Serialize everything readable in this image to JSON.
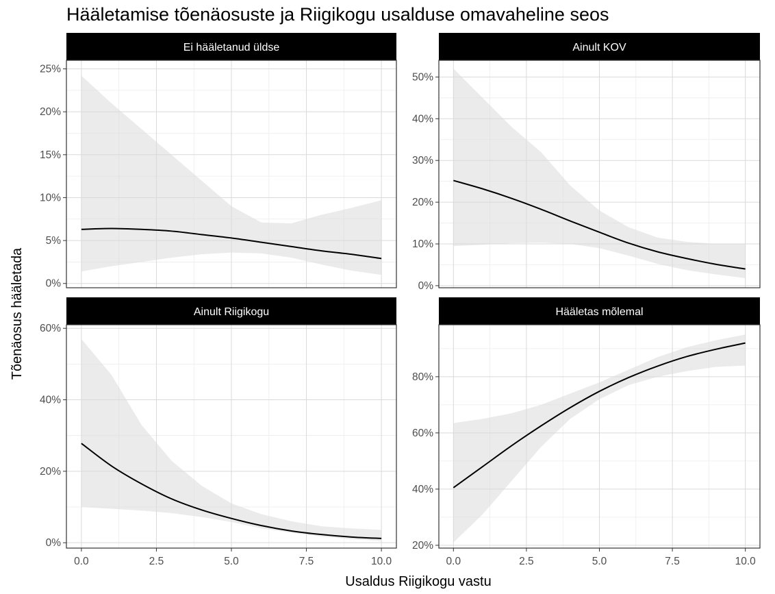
{
  "chart_data": {
    "type": "line",
    "title": "Hääletamise tõenäosuste ja Riigikogu usalduse omavaheline seos",
    "xlabel": "Usaldus Riigikogu vastu",
    "ylabel": "Tõenäosus hääletada",
    "xlim": [
      -0.5,
      10.5
    ],
    "x_ticks": [
      0,
      2.5,
      5,
      7.5,
      10
    ],
    "x_tick_labels": [
      "0.0",
      "2.5",
      "5.0",
      "7.5",
      "10.0"
    ],
    "panels": [
      {
        "strip": "Ei hääletanud üldse",
        "ylim": [
          -0.005,
          0.26
        ],
        "y_ticks": [
          0,
          0.05,
          0.1,
          0.15,
          0.2,
          0.25
        ],
        "y_tick_labels": [
          "0%",
          "5%",
          "10%",
          "15%",
          "20%",
          "25%"
        ],
        "x": [
          0,
          1,
          2,
          3,
          4,
          5,
          6,
          7,
          8,
          9,
          10
        ],
        "fit": [
          0.063,
          0.064,
          0.063,
          0.061,
          0.057,
          0.053,
          0.048,
          0.043,
          0.038,
          0.034,
          0.029
        ],
        "lower": [
          0.014,
          0.02,
          0.025,
          0.03,
          0.034,
          0.036,
          0.035,
          0.03,
          0.022,
          0.015,
          0.01
        ],
        "upper": [
          0.242,
          0.21,
          0.18,
          0.15,
          0.12,
          0.09,
          0.071,
          0.07,
          0.08,
          0.088,
          0.097
        ]
      },
      {
        "strip": "Ainult KOV",
        "ylim": [
          -0.005,
          0.54
        ],
        "y_ticks": [
          0,
          0.1,
          0.2,
          0.3,
          0.4,
          0.5
        ],
        "y_tick_labels": [
          "0%",
          "10%",
          "20%",
          "30%",
          "40%",
          "50%"
        ],
        "x": [
          0,
          1,
          2,
          3,
          4,
          5,
          6,
          7,
          8,
          9,
          10
        ],
        "fit": [
          0.252,
          0.232,
          0.209,
          0.183,
          0.155,
          0.128,
          0.102,
          0.081,
          0.065,
          0.051,
          0.04
        ],
        "lower": [
          0.095,
          0.098,
          0.102,
          0.103,
          0.1,
          0.09,
          0.072,
          0.052,
          0.037,
          0.027,
          0.018
        ],
        "upper": [
          0.52,
          0.45,
          0.38,
          0.32,
          0.24,
          0.18,
          0.14,
          0.115,
          0.105,
          0.1,
          0.1
        ]
      },
      {
        "strip": "Ainult Riigikogu",
        "ylim": [
          -0.015,
          0.61
        ],
        "y_ticks": [
          0,
          0.2,
          0.4,
          0.6
        ],
        "y_tick_labels": [
          "0%",
          "20%",
          "40%",
          "60%"
        ],
        "x": [
          0,
          1,
          2,
          3,
          4,
          5,
          6,
          7,
          8,
          9,
          10
        ],
        "fit": [
          0.278,
          0.215,
          0.165,
          0.123,
          0.092,
          0.068,
          0.048,
          0.033,
          0.023,
          0.016,
          0.012
        ],
        "lower": [
          0.1,
          0.095,
          0.09,
          0.083,
          0.072,
          0.058,
          0.04,
          0.028,
          0.017,
          0.01,
          0.005
        ],
        "upper": [
          0.57,
          0.47,
          0.33,
          0.23,
          0.16,
          0.11,
          0.08,
          0.06,
          0.046,
          0.04,
          0.036
        ]
      },
      {
        "strip": "Hääletas mõlemal",
        "ylim": [
          0.19,
          0.985
        ],
        "y_ticks": [
          0.2,
          0.4,
          0.6,
          0.8
        ],
        "y_tick_labels": [
          "20%",
          "40%",
          "60%",
          "80%"
        ],
        "x": [
          0,
          1,
          2,
          3,
          4,
          5,
          6,
          7,
          8,
          9,
          10
        ],
        "fit": [
          0.405,
          0.48,
          0.555,
          0.625,
          0.69,
          0.748,
          0.797,
          0.838,
          0.872,
          0.898,
          0.92
        ],
        "lower": [
          0.21,
          0.31,
          0.43,
          0.55,
          0.65,
          0.72,
          0.77,
          0.8,
          0.82,
          0.835,
          0.84
        ],
        "upper": [
          0.635,
          0.65,
          0.67,
          0.7,
          0.74,
          0.78,
          0.825,
          0.87,
          0.905,
          0.93,
          0.95
        ]
      }
    ]
  }
}
